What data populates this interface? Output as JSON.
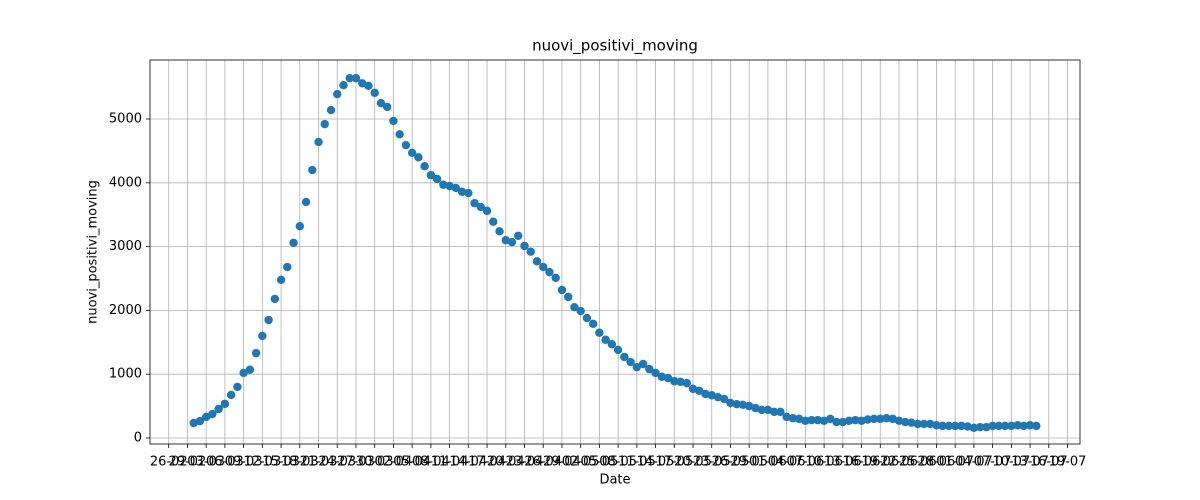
{
  "chart_data": {
    "type": "scatter",
    "title": "nuovi_positivi_moving",
    "xlabel": "Date",
    "ylabel": "nuovi_positivi_moving",
    "color": "#1f77b4",
    "grid": true,
    "x": [
      "01-03",
      "02-03",
      "03-03",
      "04-03",
      "05-03",
      "06-03",
      "07-03",
      "08-03",
      "09-03",
      "10-03",
      "11-03",
      "12-03",
      "13-03",
      "14-03",
      "15-03",
      "16-03",
      "17-03",
      "18-03",
      "19-03",
      "20-03",
      "21-03",
      "22-03",
      "23-03",
      "24-03",
      "25-03",
      "26-03",
      "27-03",
      "28-03",
      "29-03",
      "30-03",
      "31-03",
      "01-04",
      "02-04",
      "03-04",
      "04-04",
      "05-04",
      "06-04",
      "07-04",
      "08-04",
      "09-04",
      "10-04",
      "11-04",
      "12-04",
      "13-04",
      "14-04",
      "15-04",
      "16-04",
      "17-04",
      "18-04",
      "19-04",
      "20-04",
      "21-04",
      "22-04",
      "23-04",
      "24-04",
      "25-04",
      "26-04",
      "27-04",
      "28-04",
      "29-04",
      "30-04",
      "01-05",
      "02-05",
      "03-05",
      "04-05",
      "05-05",
      "06-05",
      "07-05",
      "08-05",
      "09-05",
      "10-05",
      "11-05",
      "12-05",
      "13-05",
      "14-05",
      "15-05",
      "16-05",
      "17-05",
      "18-05",
      "19-05",
      "20-05",
      "21-05",
      "22-05",
      "23-05",
      "24-05",
      "25-05",
      "26-05",
      "27-05",
      "28-05",
      "29-05",
      "30-05",
      "31-05",
      "01-06",
      "02-06",
      "03-06",
      "04-06",
      "05-06",
      "06-06",
      "07-06",
      "08-06",
      "09-06",
      "10-06",
      "11-06",
      "12-06",
      "13-06",
      "14-06",
      "15-06",
      "16-06",
      "17-06",
      "18-06",
      "19-06",
      "20-06",
      "21-06",
      "22-06",
      "23-06",
      "24-06",
      "25-06",
      "26-06",
      "27-06",
      "28-06",
      "29-06",
      "30-06",
      "01-07",
      "02-07",
      "03-07",
      "04-07",
      "05-07",
      "06-07",
      "07-07",
      "08-07",
      "09-07",
      "10-07",
      "11-07",
      "12-07",
      "13-07",
      "14-07"
    ],
    "values": [
      235,
      265,
      330,
      375,
      455,
      535,
      675,
      800,
      1020,
      1070,
      1330,
      1600,
      1850,
      2180,
      2480,
      2680,
      3060,
      3320,
      3700,
      4200,
      4640,
      4920,
      5140,
      5390,
      5530,
      5640,
      5640,
      5560,
      5520,
      5410,
      5250,
      5190,
      4970,
      4760,
      4590,
      4470,
      4400,
      4260,
      4120,
      4060,
      3970,
      3950,
      3920,
      3860,
      3840,
      3680,
      3620,
      3560,
      3390,
      3240,
      3100,
      3070,
      3170,
      3010,
      2920,
      2770,
      2680,
      2600,
      2510,
      2320,
      2210,
      2050,
      1990,
      1880,
      1790,
      1650,
      1540,
      1470,
      1380,
      1270,
      1190,
      1110,
      1160,
      1080,
      1020,
      960,
      940,
      890,
      880,
      860,
      770,
      740,
      690,
      670,
      640,
      610,
      550,
      530,
      520,
      500,
      470,
      440,
      440,
      410,
      410,
      330,
      310,
      300,
      270,
      280,
      280,
      270,
      300,
      250,
      250,
      270,
      280,
      270,
      290,
      300,
      300,
      310,
      300,
      270,
      250,
      240,
      220,
      220,
      220,
      200,
      190,
      190,
      190,
      190,
      180,
      160,
      170,
      170,
      190,
      190,
      190,
      190,
      200,
      190,
      200,
      190
    ],
    "xlim": [
      "23-02",
      "21-07"
    ],
    "xticks": [
      "26-02",
      "29-02",
      "03-03",
      "06-03",
      "09-03",
      "12-03",
      "15-03",
      "18-03",
      "21-03",
      "24-03",
      "27-03",
      "30-03",
      "02-04",
      "05-04",
      "08-04",
      "11-04",
      "14-04",
      "17-04",
      "20-04",
      "23-04",
      "26-04",
      "29-04",
      "02-05",
      "05-05",
      "08-05",
      "11-05",
      "14-05",
      "17-05",
      "20-05",
      "23-05",
      "26-05",
      "29-05",
      "01-06",
      "04-06",
      "07-06",
      "10-06",
      "13-06",
      "16-06",
      "19-06",
      "22-06",
      "25-06",
      "28-06",
      "01-07",
      "04-07",
      "07-07",
      "10-07",
      "13-07",
      "16-07",
      "19-07"
    ],
    "ylim": [
      -94,
      5925
    ],
    "yticks": [
      0,
      1000,
      2000,
      3000,
      4000,
      5000
    ]
  }
}
